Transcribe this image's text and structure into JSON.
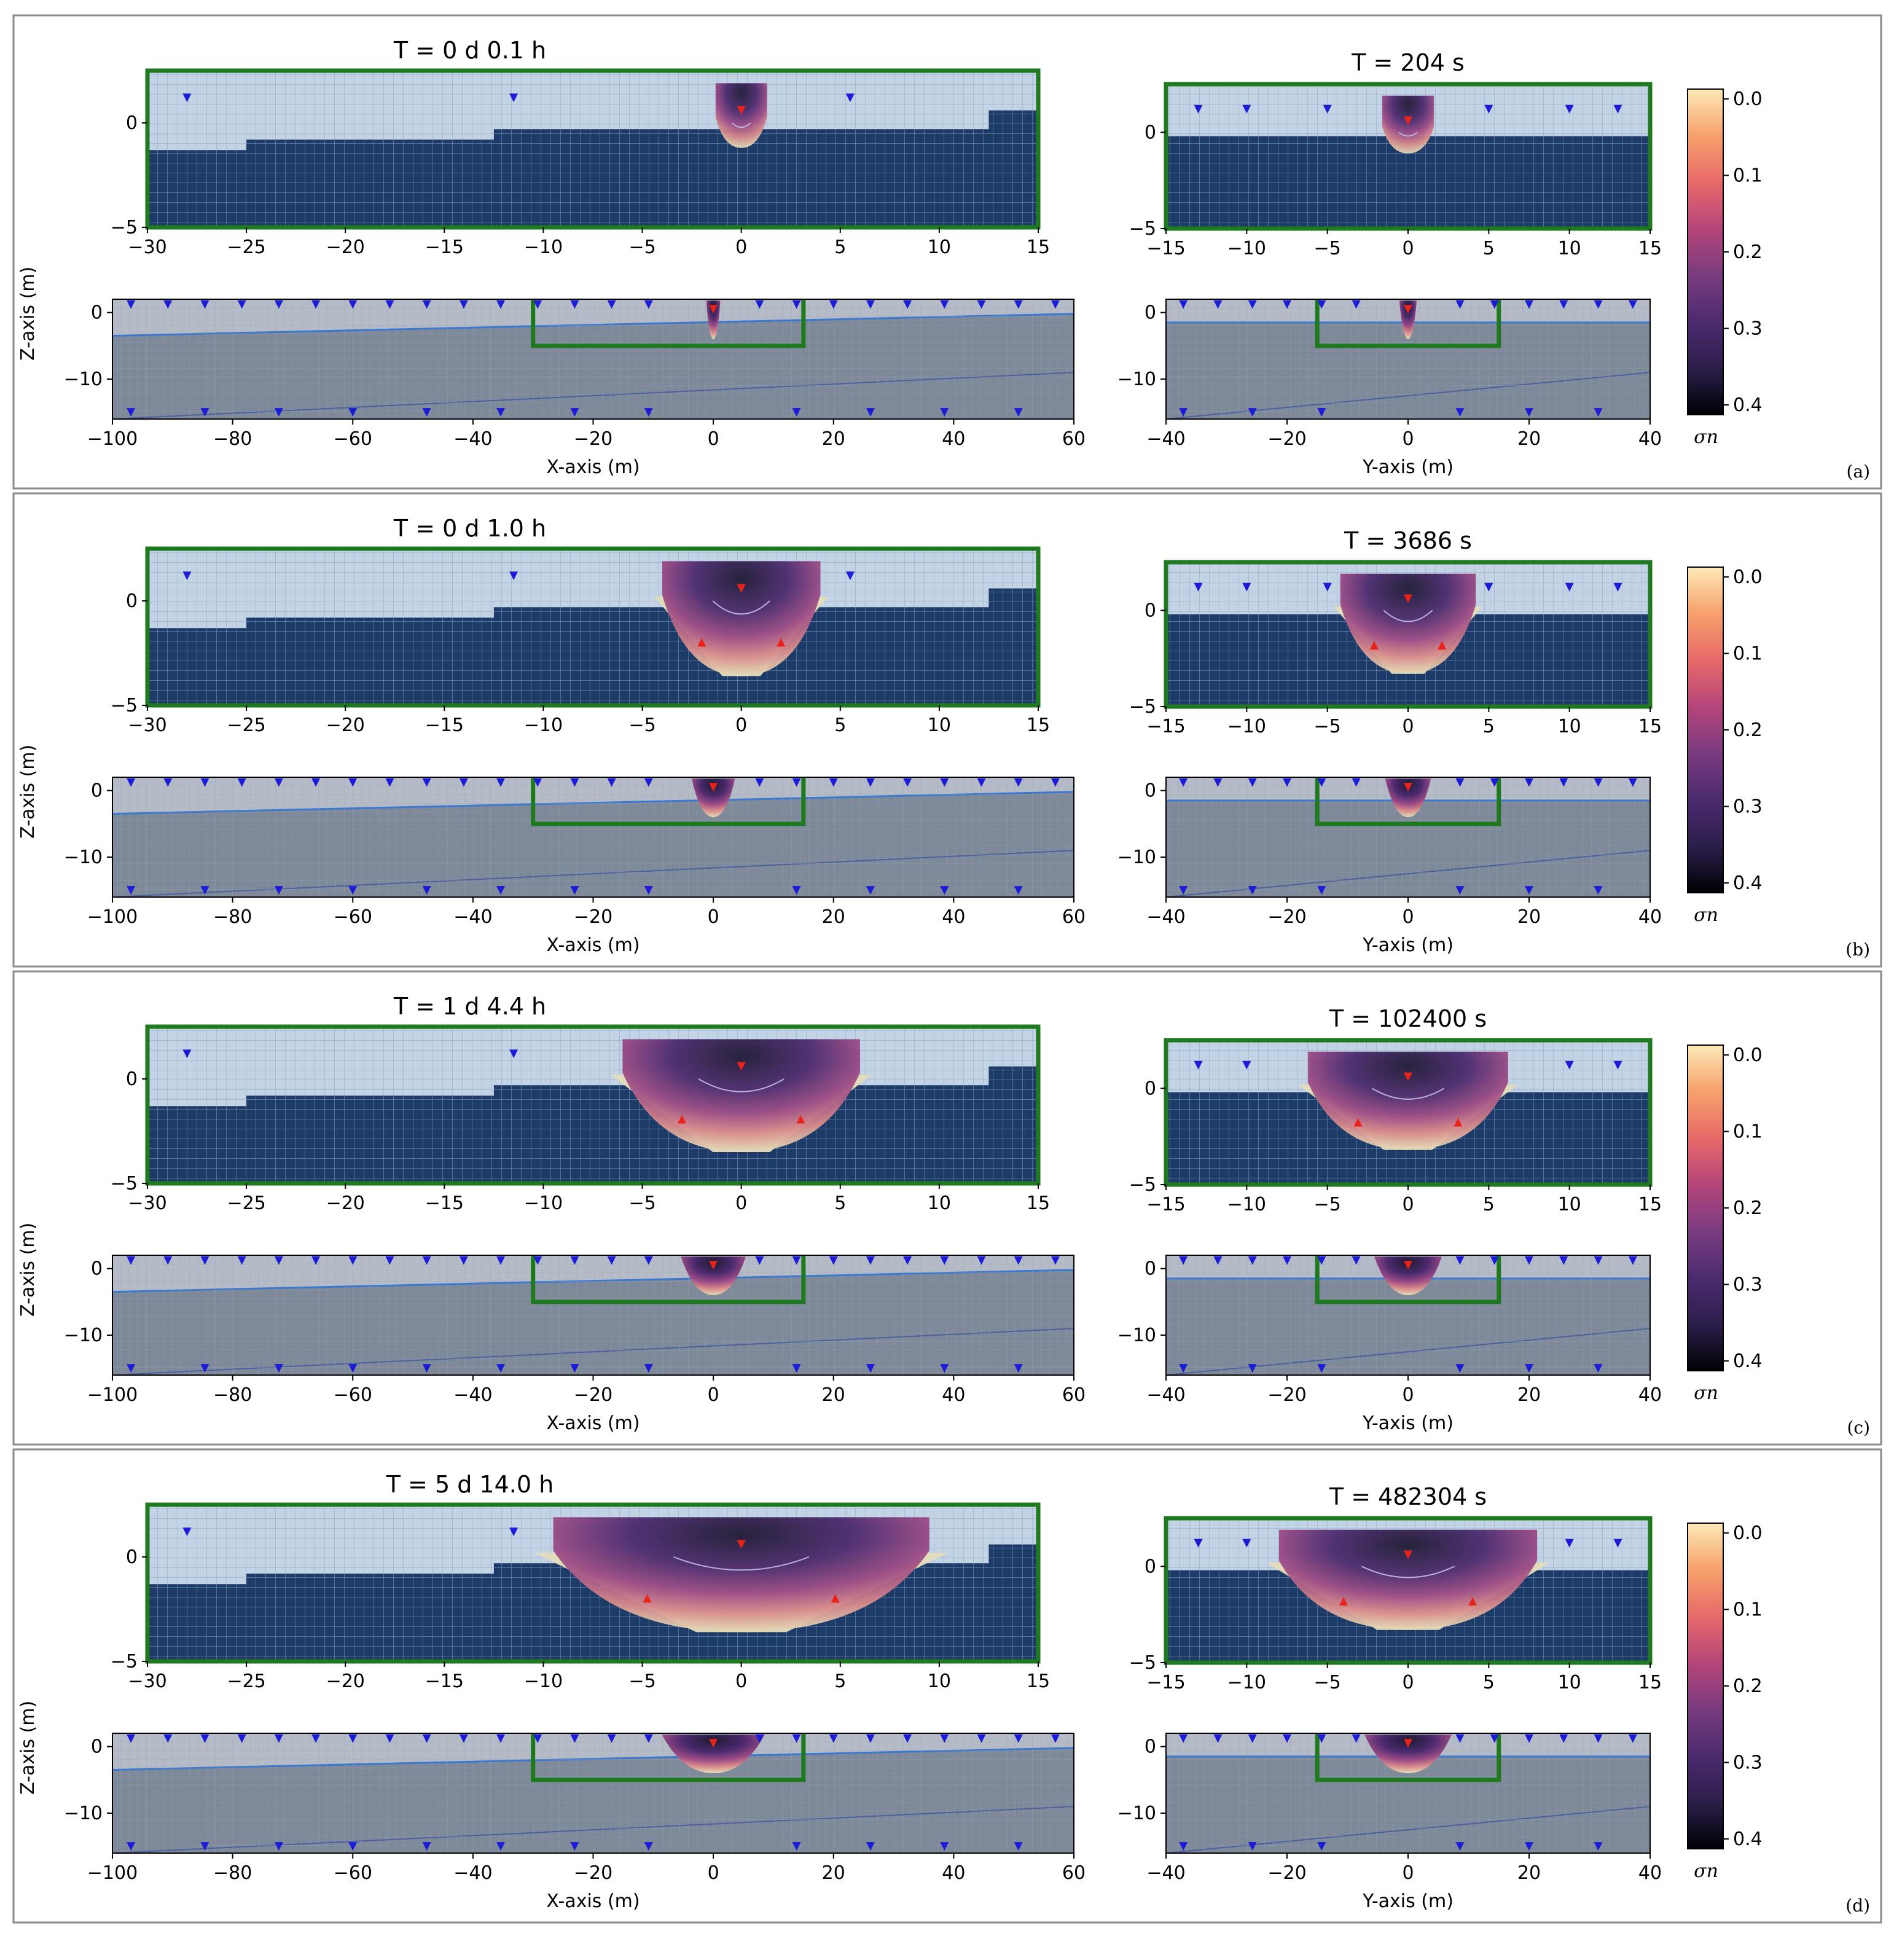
{
  "figure": {
    "type": "simulation_snapshot_grid"
  },
  "colors": {
    "air": "#c3d3e6",
    "water_table_zone": "#1c3b68",
    "section_fill": "#7e8a99",
    "mesh": "#9aa8bc",
    "boundary": "#1f7a1f",
    "arrow": "#1b1bd8",
    "hot_arrow": "#e8231a",
    "front_orange": "#f4a340",
    "plume_core": "#1f1a33",
    "plume_mid": "#6b3a7a",
    "plume_edge": "#e3dcb8"
  },
  "colormap": [
    "#000004",
    "#2b1e4a",
    "#4b2a6e",
    "#7a3b7f",
    "#b5457a",
    "#e6686a",
    "#f7a26b",
    "#fde9b8"
  ],
  "chart_data": {
    "type": "heatmap",
    "colorbar": {
      "label": "σn",
      "ticks": [
        "0.0",
        "0.1",
        "0.2",
        "0.3",
        "0.4"
      ],
      "range": [
        0.0,
        0.4
      ]
    },
    "axes_templates": {
      "top_left": {
        "xlim": [
          -30,
          15
        ],
        "ylim": [
          -5,
          2.5
        ],
        "xticks": [
          -30,
          -25,
          -20,
          -15,
          -10,
          -5,
          0,
          5,
          10,
          15
        ],
        "yticks": [
          0,
          -5
        ]
      },
      "top_right": {
        "xlim": [
          -15,
          15
        ],
        "ylim": [
          -5,
          2.5
        ],
        "xticks": [
          -15,
          -10,
          -5,
          0,
          5,
          10,
          15
        ],
        "yticks": [
          0,
          -5
        ]
      },
      "bottom_left": {
        "xlim": [
          -100,
          60
        ],
        "ylim": [
          -16,
          2
        ],
        "xticks": [
          -100,
          -80,
          -60,
          -40,
          -20,
          0,
          20,
          40,
          60
        ],
        "yticks": [
          0,
          -10
        ],
        "xlabel": "X-axis (m)",
        "ylabel": "Z-axis (m)"
      },
      "bottom_right": {
        "xlim": [
          -40,
          40
        ],
        "ylim": [
          -16,
          2
        ],
        "xticks": [
          -40,
          -20,
          0,
          20,
          40
        ],
        "yticks": [
          0,
          -10
        ],
        "xlabel": "Y-axis (m)"
      }
    },
    "panels": [
      {
        "id": "a",
        "tag": "(a)",
        "title_left": "T = 0 d  0.1 h",
        "title_right": "T = 204 s",
        "plume_half_width_x": 1.3,
        "plume_depth_x": 1.2,
        "plume_half_width_y": 1.6,
        "plume_depth_y": 1.1,
        "core_only": true
      },
      {
        "id": "b",
        "tag": "(b)",
        "title_left": "T = 0 d  1.0 h",
        "title_right": "T = 3686 s",
        "plume_half_width_x": 4.0,
        "plume_depth_x": 3.6,
        "plume_half_width_y": 4.2,
        "plume_depth_y": 3.3,
        "core_only": false
      },
      {
        "id": "c",
        "tag": "(c)",
        "title_left": "T = 1 d  4.4 h",
        "title_right": "T = 102400 s",
        "plume_half_width_x": 6.0,
        "plume_depth_x": 3.5,
        "plume_half_width_y": 6.2,
        "plume_depth_y": 3.2,
        "core_only": false
      },
      {
        "id": "d",
        "tag": "(d)",
        "title_left": "T = 5 d 14.0 h",
        "title_right": "T = 482304 s",
        "plume_half_width_x": 9.5,
        "plume_depth_x": 3.6,
        "plume_half_width_y": 8.0,
        "plume_depth_y": 3.3,
        "core_only": false
      }
    ]
  }
}
